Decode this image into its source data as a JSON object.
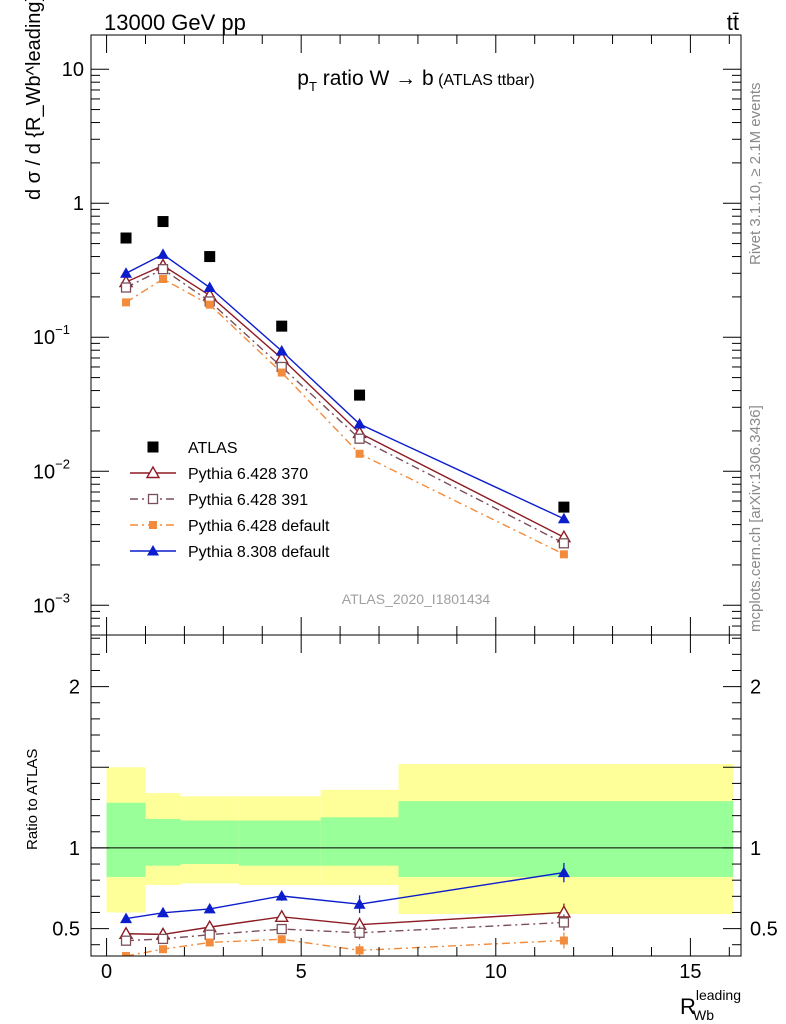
{
  "header": {
    "energy": "13000 GeV pp",
    "process": "tt̄"
  },
  "side_labels": {
    "rivet": "Rivet 3.1.10, ≥ 2.1M events",
    "source": "mcplots.cern.ch [arXiv:1306.3436]"
  },
  "chart_data": [
    {
      "type": "line",
      "title": "p_T ratio W → b (ATLAS ttbar)",
      "title_parts": {
        "p": "p",
        "sub": "T",
        "main": " ratio W",
        "arrow": " → ",
        "b": "b",
        "small": " (ATLAS ttbar)"
      },
      "ylabel": "d σ / d {R_Wb^leading} [pb]",
      "yscale": "log",
      "ylim": [
        0.0006,
        18
      ],
      "xlim": [
        -0.4,
        16.3
      ],
      "yticks": [
        {
          "v": 10,
          "label": "10"
        },
        {
          "v": 1,
          "label": "1"
        },
        {
          "v": 0.1,
          "label": "10",
          "exp": "−1"
        },
        {
          "v": 0.01,
          "label": "10",
          "exp": "−2"
        },
        {
          "v": 0.001,
          "label": "10",
          "exp": "−3"
        }
      ],
      "analysis_id": "ATLAS_2020_I1801434",
      "x": [
        0.5,
        1.45,
        2.65,
        4.5,
        6.5,
        11.75
      ],
      "series": [
        {
          "name": "ATLAS",
          "color": "#000000",
          "marker": "square-filled",
          "dash": "none",
          "values": [
            0.55,
            0.73,
            0.4,
            0.121,
            0.037,
            0.0054
          ]
        },
        {
          "name": "Pythia 6.428 370",
          "color": "#8e1c24",
          "marker": "triangle-open",
          "dash": "solid",
          "values": [
            0.258,
            0.343,
            0.205,
            0.0695,
            0.0193,
            0.00322
          ]
        },
        {
          "name": "Pythia 6.428 391",
          "color": "#7a4f5a",
          "marker": "square-open",
          "dash": "dashdot",
          "values": [
            0.235,
            0.322,
            0.185,
            0.06,
            0.0175,
            0.0029
          ]
        },
        {
          "name": "Pythia 6.428 default",
          "color": "#f28c3c",
          "marker": "square-filled-small",
          "dash": "dashdot",
          "values": [
            0.182,
            0.272,
            0.175,
            0.0545,
            0.0135,
            0.0024
          ]
        },
        {
          "name": "Pythia 8.308 default",
          "color": "#0c1dcc",
          "marker": "triangle-filled",
          "dash": "solid",
          "values": [
            0.3,
            0.415,
            0.235,
            0.079,
            0.0225,
            0.00442
          ]
        }
      ]
    },
    {
      "type": "line",
      "ylabel": "Ratio to ATLAS",
      "xlabel": "R_Wb^leading",
      "xlabel_parts": {
        "main": "R",
        "sup": "leading",
        "sub": "Wb"
      },
      "ylim": [
        0.33,
        2.32
      ],
      "xlim": [
        -0.4,
        16.3
      ],
      "yticks": [
        {
          "v": 2,
          "label": "2"
        },
        {
          "v": 1,
          "label": "1"
        },
        {
          "v": 0.5,
          "label": "0.5"
        }
      ],
      "xticks": [
        {
          "v": 0,
          "label": "0"
        },
        {
          "v": 5,
          "label": "5"
        },
        {
          "v": 10,
          "label": "10"
        },
        {
          "v": 15,
          "label": "15"
        }
      ],
      "bands": [
        {
          "x0": 0,
          "x1": 1,
          "inner": [
            0.82,
            1.28
          ],
          "outer": [
            0.6,
            1.5
          ]
        },
        {
          "x0": 1,
          "x1": 1.9,
          "inner": [
            0.89,
            1.18
          ],
          "outer": [
            0.77,
            1.34
          ]
        },
        {
          "x0": 1.9,
          "x1": 3.4,
          "inner": [
            0.9,
            1.17
          ],
          "outer": [
            0.78,
            1.32
          ]
        },
        {
          "x0": 3.4,
          "x1": 5.5,
          "inner": [
            0.89,
            1.17
          ],
          "outer": [
            0.77,
            1.32
          ]
        },
        {
          "x0": 5.5,
          "x1": 7.5,
          "inner": [
            0.89,
            1.19
          ],
          "outer": [
            0.77,
            1.36
          ]
        },
        {
          "x0": 7.5,
          "x1": 16.1,
          "inner": [
            0.82,
            1.29
          ],
          "outer": [
            0.59,
            1.52
          ]
        }
      ],
      "x": [
        0.5,
        1.45,
        2.65,
        4.5,
        6.5,
        11.75
      ],
      "series": [
        {
          "name": "Pythia 6.428 370",
          "color": "#8e1c24",
          "marker": "triangle-open",
          "dash": "solid",
          "values": [
            0.468,
            0.464,
            0.509,
            0.573,
            0.524,
            0.6
          ],
          "errors": [
            0.018,
            0.018,
            0.022,
            0.025,
            0.045,
            0.055
          ]
        },
        {
          "name": "Pythia 6.428 391",
          "color": "#7a4f5a",
          "marker": "square-open",
          "dash": "dashdot",
          "values": [
            0.425,
            0.436,
            0.462,
            0.497,
            0.474,
            0.538
          ],
          "errors": [
            0.015,
            0.015,
            0.018,
            0.02,
            0.04,
            0.05
          ]
        },
        {
          "name": "Pythia 6.428 default",
          "color": "#f28c3c",
          "marker": "square-filled-small",
          "dash": "dashdot",
          "values": [
            0.33,
            0.372,
            0.414,
            0.434,
            0.365,
            0.426
          ],
          "errors": [
            0.015,
            0.015,
            0.018,
            0.025,
            0.04,
            0.05
          ]
        },
        {
          "name": "Pythia 8.308 default",
          "color": "#0c1dcc",
          "marker": "triangle-filled",
          "dash": "solid",
          "values": [
            0.562,
            0.598,
            0.622,
            0.702,
            0.651,
            0.847
          ],
          "errors": [
            0.02,
            0.018,
            0.02,
            0.03,
            0.055,
            0.06
          ]
        }
      ]
    }
  ]
}
